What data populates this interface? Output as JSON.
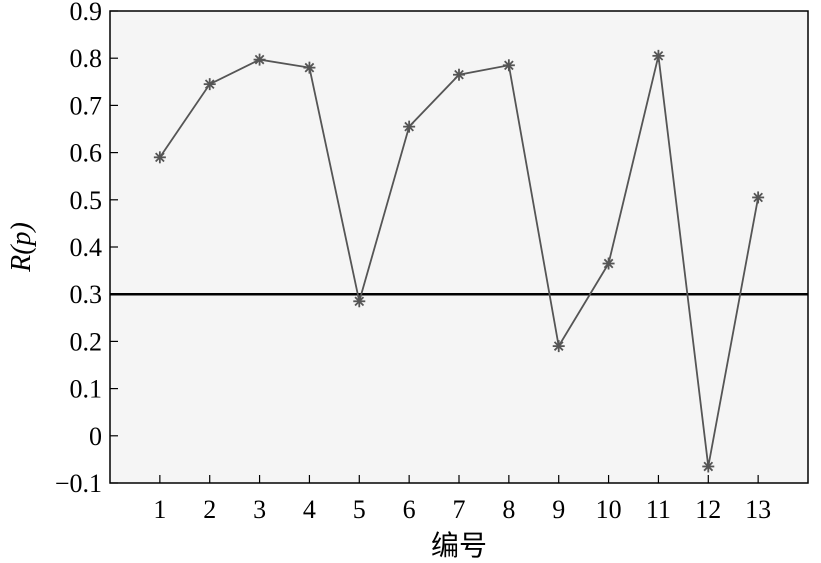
{
  "chart_data": {
    "type": "line",
    "xlabel": "编号",
    "ylabel": "R(p)",
    "x": [
      1,
      2,
      3,
      4,
      5,
      6,
      7,
      8,
      9,
      10,
      11,
      12,
      13
    ],
    "x_tick_labels": [
      "1",
      "2",
      "3",
      "4",
      "5",
      "6",
      "7",
      "8",
      "9",
      "10",
      "11",
      "12",
      "13"
    ],
    "xlim": [
      0,
      14
    ],
    "ylim": [
      -0.1,
      0.9
    ],
    "y_ticks": [
      -0.1,
      0,
      0.1,
      0.2,
      0.3,
      0.4,
      0.5,
      0.6,
      0.7,
      0.8,
      0.9
    ],
    "y_tick_labels": [
      "−0.1",
      "0",
      "0.1",
      "0.2",
      "0.3",
      "0.4",
      "0.5",
      "0.6",
      "0.7",
      "0.8",
      "0.9"
    ],
    "series": [
      {
        "values": [
          0.59,
          0.745,
          0.797,
          0.78,
          0.285,
          0.655,
          0.765,
          0.785,
          0.19,
          0.365,
          0.805,
          -0.065,
          0.505
        ]
      }
    ],
    "reference_line": {
      "y": 0.3
    },
    "grid": false,
    "marker": "asterisk",
    "colors": {
      "series": "#555555",
      "reference": "#000000",
      "background": "#f5f5f5",
      "axes": "#000000"
    }
  }
}
